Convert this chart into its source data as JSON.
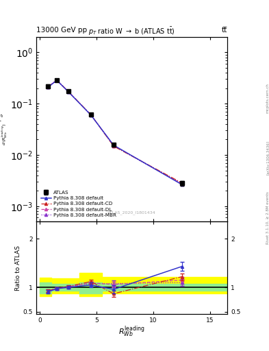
{
  "title_top": "13000 GeV pp",
  "title_right": "tt̅",
  "plot_title": "p_{T} ratio W → b (ATLAS t̅bar)",
  "right_label": "Rivet 3.1.10, ≥ 2.8M events",
  "arxiv_label": "[arXiv:1306.3436]",
  "mcplots_label": "mcplots.cern.ch",
  "watermark": "ATLAS_2020_I1801434",
  "xlabel": "R_{Wb}^{leading}",
  "ylabel_main_line1": "1",
  "ylabel_ratio": "Ratio to ATLAS",
  "atlas_x": [
    0.75,
    1.5,
    2.5,
    4.5,
    6.5,
    12.5
  ],
  "atlas_y": [
    0.22,
    0.29,
    0.175,
    0.062,
    0.016,
    0.0028
  ],
  "atlas_yerr": [
    0.015,
    0.018,
    0.012,
    0.004,
    0.001,
    0.0003
  ],
  "pythia_default_x": [
    0.75,
    1.5,
    2.5,
    4.5,
    6.5,
    12.5
  ],
  "pythia_default_y": [
    0.21,
    0.285,
    0.172,
    0.06,
    0.0155,
    0.00265
  ],
  "pythia_CD_x": [
    0.75,
    1.5,
    2.5,
    4.5,
    6.5,
    12.5
  ],
  "pythia_CD_y": [
    0.215,
    0.287,
    0.174,
    0.061,
    0.0148,
    0.00285
  ],
  "pythia_DL_x": [
    0.75,
    1.5,
    2.5,
    4.5,
    6.5,
    12.5
  ],
  "pythia_DL_y": [
    0.213,
    0.286,
    0.173,
    0.0605,
    0.0152,
    0.00275
  ],
  "pythia_MBR_x": [
    0.75,
    1.5,
    2.5,
    4.5,
    6.5,
    12.5
  ],
  "pythia_MBR_y": [
    0.212,
    0.284,
    0.172,
    0.0602,
    0.015,
    0.0027
  ],
  "ratio_x": [
    0.75,
    1.5,
    2.5,
    4.5,
    6.5,
    12.5
  ],
  "ratio_default_y": [
    0.91,
    0.975,
    1.0,
    1.05,
    0.96,
    1.43
  ],
  "ratio_default_yerr": [
    0.04,
    0.025,
    0.025,
    0.045,
    0.08,
    0.09
  ],
  "ratio_CD_y": [
    0.93,
    0.985,
    1.02,
    1.12,
    0.87,
    1.22
  ],
  "ratio_CD_yerr": [
    0.03,
    0.02,
    0.02,
    0.04,
    0.06,
    0.07
  ],
  "ratio_DL_y": [
    0.925,
    0.98,
    1.015,
    1.09,
    1.06,
    1.15
  ],
  "ratio_DL_yerr": [
    0.03,
    0.02,
    0.02,
    0.04,
    0.06,
    0.07
  ],
  "ratio_MBR_y": [
    0.92,
    0.977,
    1.01,
    1.08,
    1.08,
    1.1
  ],
  "ratio_MBR_yerr": [
    0.03,
    0.02,
    0.02,
    0.04,
    0.06,
    0.07
  ],
  "band_x_edges": [
    0.0,
    1.0,
    3.5,
    5.5,
    16.5
  ],
  "band_yellow_low": [
    0.82,
    0.87,
    0.82,
    0.88,
    0.88
  ],
  "band_yellow_high": [
    1.2,
    1.18,
    1.3,
    1.22,
    1.22
  ],
  "band_green_low": [
    0.88,
    0.93,
    0.88,
    0.93,
    0.93
  ],
  "band_green_high": [
    1.1,
    1.07,
    1.1,
    1.07,
    1.07
  ],
  "color_atlas": "#000000",
  "color_default": "#3333cc",
  "color_CD": "#cc2222",
  "color_DL": "#cc44aa",
  "color_MBR": "#8833cc",
  "ylim_main": [
    0.0005,
    2.0
  ],
  "ylim_ratio": [
    0.45,
    2.35
  ],
  "xlim": [
    -0.3,
    16.5
  ]
}
